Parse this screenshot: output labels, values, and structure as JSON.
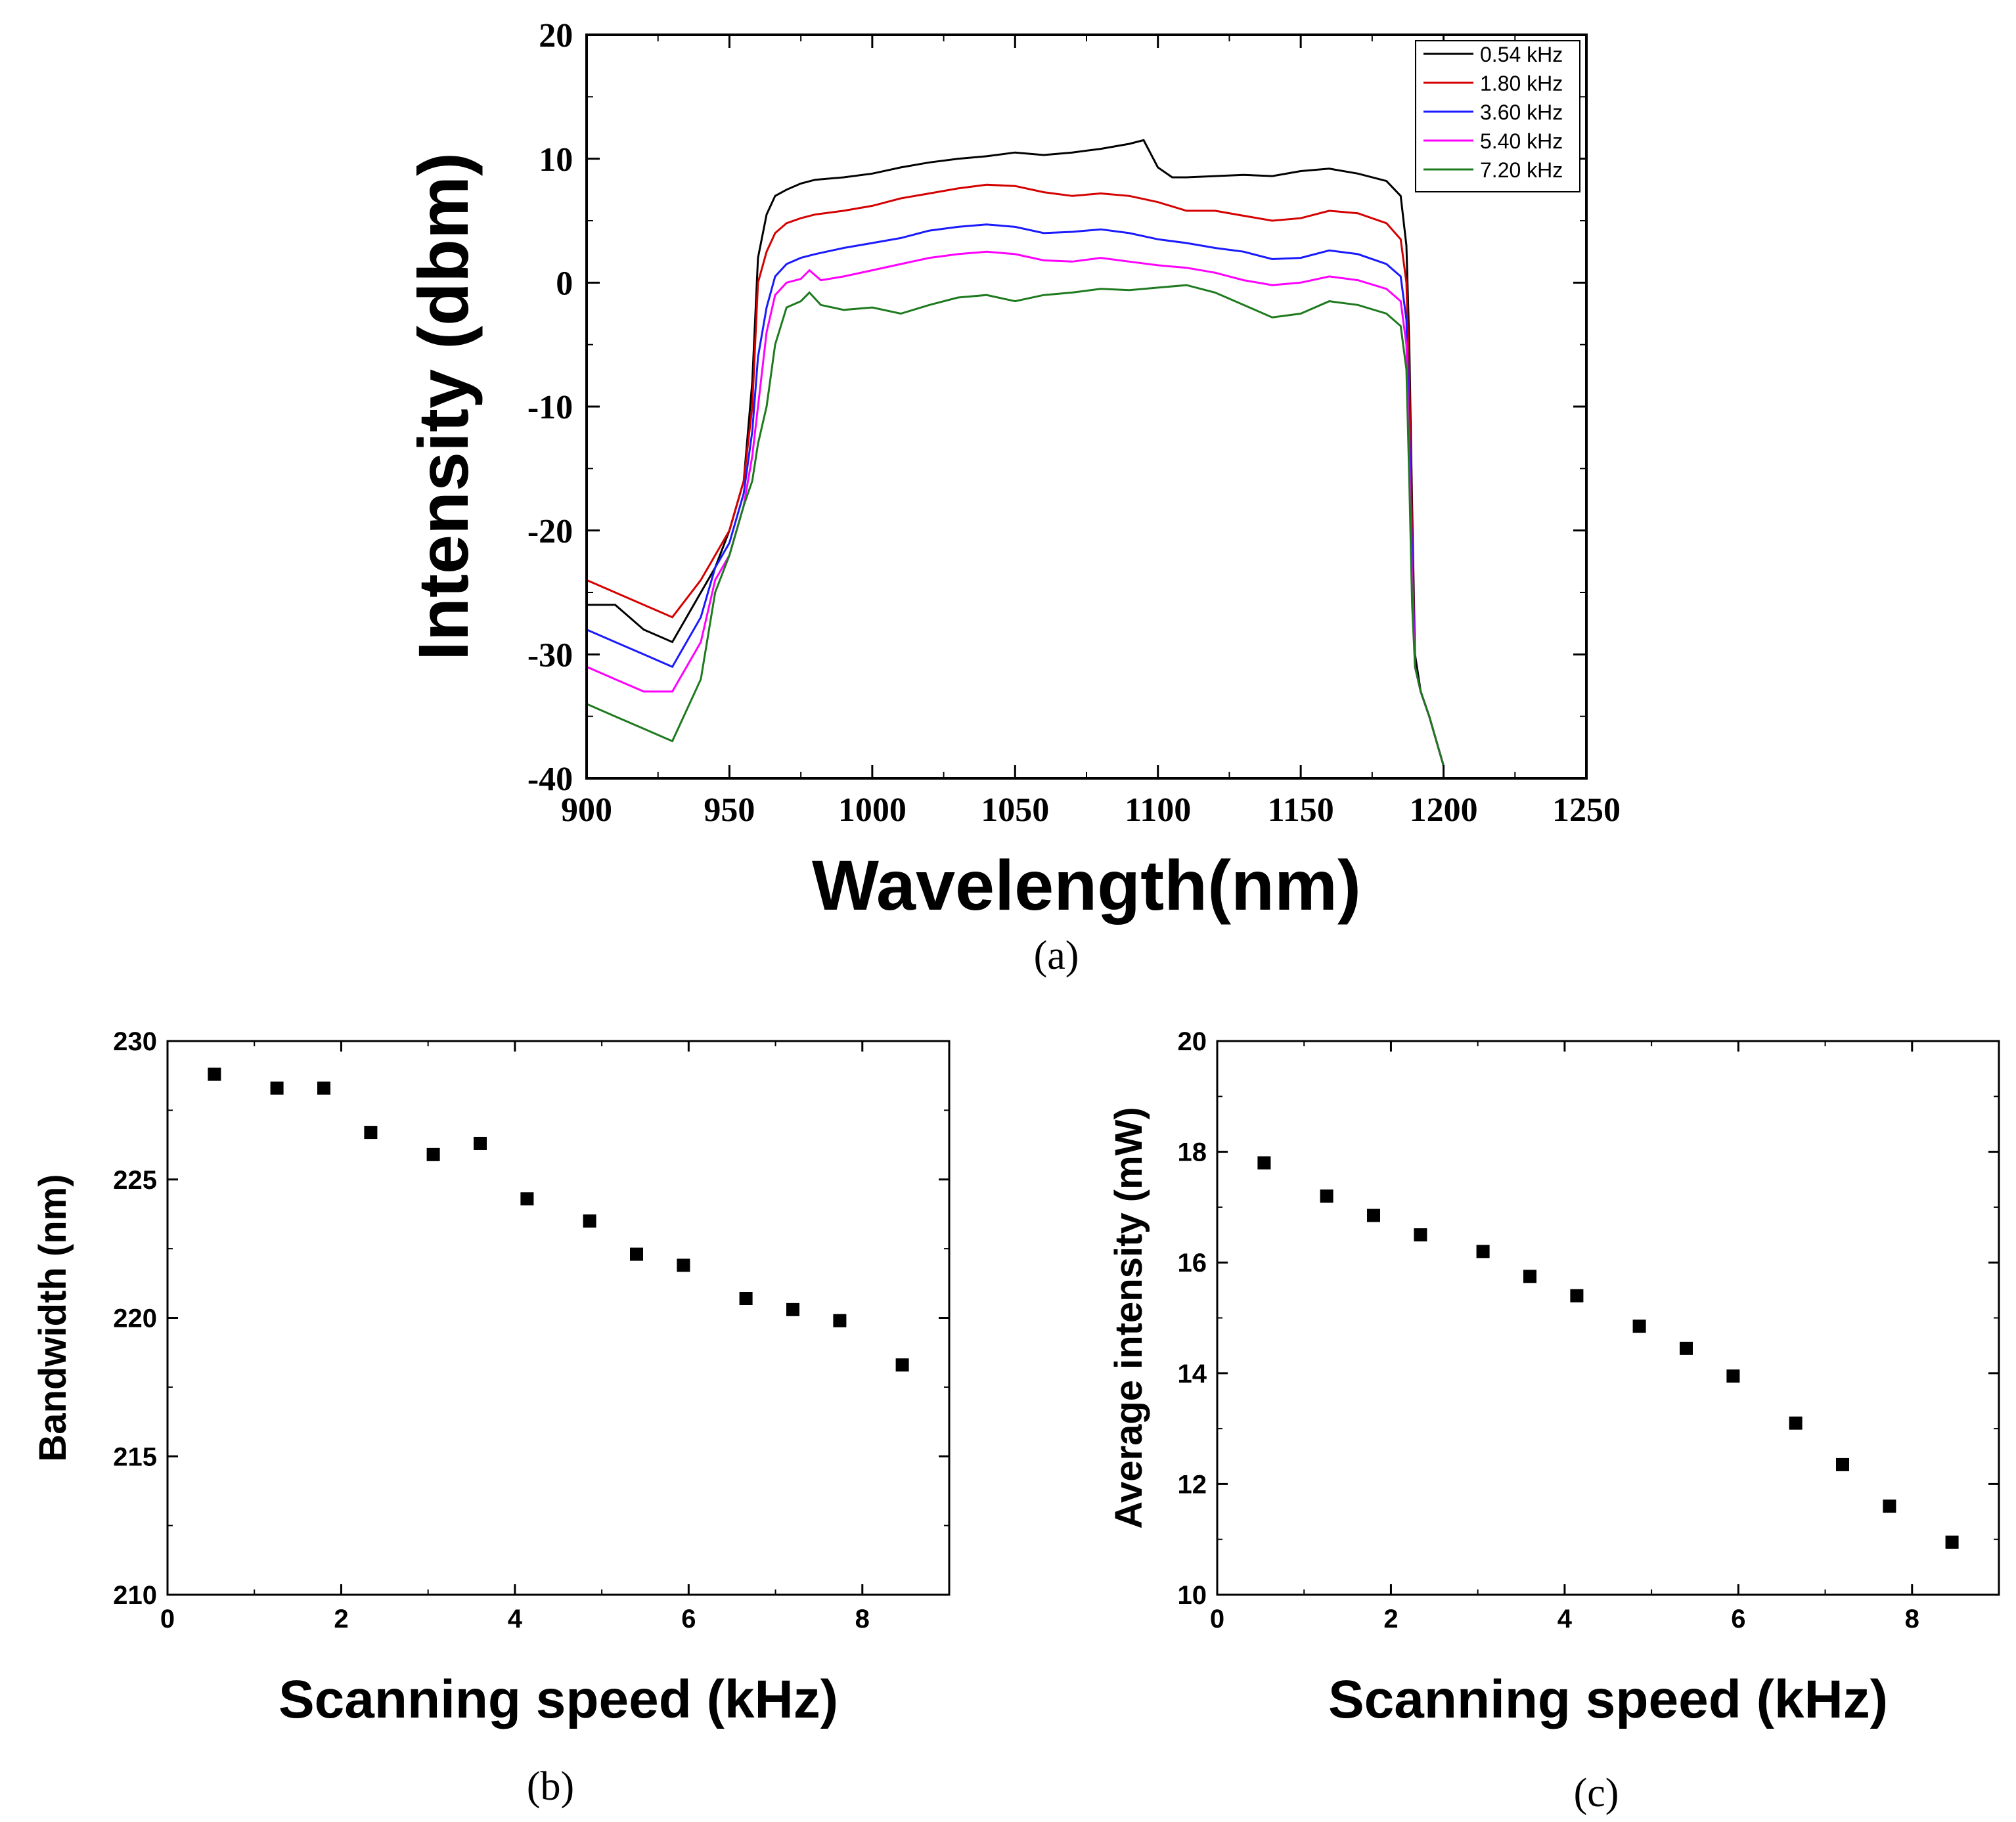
{
  "chart_data": [
    {
      "type": "line",
      "panel": "(a)",
      "xlabel": "Wavelength(nm)",
      "ylabel": "Intensity (dbm)",
      "xlim": [
        900,
        1250
      ],
      "ylim": [
        -40,
        20
      ],
      "xticks": [
        900,
        950,
        1000,
        1050,
        1100,
        1150,
        1200,
        1250
      ],
      "yticks": [
        -40,
        -30,
        -20,
        -10,
        0,
        10,
        20
      ],
      "grid": false,
      "legend_position": "top-right",
      "series": [
        {
          "name": "0.54 kHz",
          "color": "#000000",
          "x": [
            900,
            910,
            920,
            930,
            940,
            945,
            950,
            955,
            958,
            960,
            963,
            966,
            970,
            975,
            980,
            990,
            1000,
            1010,
            1020,
            1030,
            1040,
            1050,
            1060,
            1070,
            1080,
            1090,
            1095,
            1100,
            1105,
            1110,
            1120,
            1130,
            1140,
            1150,
            1160,
            1170,
            1180,
            1185,
            1187,
            1188,
            1189,
            1190,
            1192,
            1195,
            1200
          ],
          "y": [
            -26,
            -26,
            -28,
            -29,
            -25,
            -23,
            -20,
            -16,
            -8,
            2,
            5.5,
            7,
            7.5,
            8,
            8.3,
            8.5,
            8.8,
            9.3,
            9.7,
            10,
            10.2,
            10.5,
            10.3,
            10.5,
            10.8,
            11.2,
            11.5,
            9.3,
            8.5,
            8.5,
            8.6,
            8.7,
            8.6,
            9.0,
            9.2,
            8.8,
            8.2,
            7.0,
            3.0,
            -5,
            -18,
            -30,
            -33,
            -35,
            -39
          ]
        },
        {
          "name": "1.80 kHz",
          "color": "#d40000",
          "x": [
            900,
            910,
            920,
            930,
            940,
            945,
            950,
            955,
            958,
            960,
            963,
            966,
            970,
            975,
            980,
            990,
            1000,
            1010,
            1020,
            1030,
            1040,
            1050,
            1060,
            1070,
            1080,
            1090,
            1100,
            1110,
            1120,
            1130,
            1140,
            1150,
            1160,
            1170,
            1180,
            1185,
            1187,
            1188,
            1189,
            1190,
            1192,
            1195,
            1200
          ],
          "y": [
            -24,
            -25,
            -26,
            -27,
            -24,
            -22,
            -20,
            -16,
            -10,
            0,
            2.5,
            4,
            4.8,
            5.2,
            5.5,
            5.8,
            6.2,
            6.8,
            7.2,
            7.6,
            7.9,
            7.8,
            7.3,
            7.0,
            7.2,
            7.0,
            6.5,
            5.8,
            5.8,
            5.4,
            5.0,
            5.2,
            5.8,
            5.6,
            4.8,
            3.5,
            0,
            -8,
            -20,
            -31,
            -33,
            -35,
            -39
          ]
        },
        {
          "name": "3.60 kHz",
          "color": "#1a1aff",
          "x": [
            900,
            910,
            920,
            930,
            940,
            945,
            950,
            955,
            958,
            960,
            963,
            966,
            970,
            975,
            980,
            990,
            1000,
            1010,
            1020,
            1030,
            1040,
            1050,
            1060,
            1070,
            1080,
            1090,
            1100,
            1110,
            1120,
            1130,
            1140,
            1150,
            1160,
            1170,
            1180,
            1185,
            1187,
            1188,
            1189,
            1190,
            1192,
            1195,
            1200
          ],
          "y": [
            -28,
            -29,
            -30,
            -31,
            -27,
            -23,
            -21,
            -17,
            -12,
            -6,
            -2,
            0.5,
            1.5,
            2.0,
            2.3,
            2.8,
            3.2,
            3.6,
            4.2,
            4.5,
            4.7,
            4.5,
            4.0,
            4.1,
            4.3,
            4.0,
            3.5,
            3.2,
            2.8,
            2.5,
            1.9,
            2.0,
            2.6,
            2.3,
            1.5,
            0.5,
            -3,
            -12,
            -22,
            -31,
            -33,
            -35,
            -39
          ]
        },
        {
          "name": "5.40 kHz",
          "color": "#ff00ff",
          "x": [
            900,
            910,
            920,
            930,
            940,
            945,
            950,
            955,
            958,
            960,
            963,
            966,
            970,
            975,
            978,
            982,
            990,
            1000,
            1010,
            1020,
            1030,
            1040,
            1050,
            1060,
            1070,
            1080,
            1090,
            1100,
            1110,
            1120,
            1130,
            1140,
            1150,
            1160,
            1170,
            1180,
            1185,
            1187,
            1188,
            1189,
            1190,
            1192,
            1195,
            1200
          ],
          "y": [
            -31,
            -32,
            -33,
            -33,
            -29,
            -24,
            -22,
            -18,
            -14,
            -10,
            -4,
            -1,
            0,
            0.3,
            1.0,
            0.2,
            0.5,
            1.0,
            1.5,
            2.0,
            2.3,
            2.5,
            2.3,
            1.8,
            1.7,
            2.0,
            1.7,
            1.4,
            1.2,
            0.8,
            0.2,
            -0.2,
            0,
            0.5,
            0.2,
            -0.5,
            -1.5,
            -5,
            -14,
            -24,
            -31,
            -33,
            -35,
            -39
          ]
        },
        {
          "name": "7.20 kHz",
          "color": "#1e7a1e",
          "x": [
            900,
            910,
            920,
            930,
            940,
            945,
            950,
            955,
            958,
            960,
            963,
            966,
            970,
            975,
            978,
            982,
            990,
            1000,
            1010,
            1020,
            1030,
            1040,
            1050,
            1060,
            1070,
            1080,
            1090,
            1100,
            1110,
            1120,
            1130,
            1140,
            1150,
            1160,
            1170,
            1180,
            1185,
            1187,
            1188,
            1189,
            1190,
            1192,
            1195,
            1200
          ],
          "y": [
            -34,
            -35,
            -36,
            -37,
            -32,
            -25,
            -22,
            -18,
            -16,
            -13,
            -10,
            -5,
            -2,
            -1.5,
            -0.8,
            -1.8,
            -2.2,
            -2.0,
            -2.5,
            -1.8,
            -1.2,
            -1.0,
            -1.5,
            -1.0,
            -0.8,
            -0.5,
            -0.6,
            -0.4,
            -0.2,
            -0.8,
            -1.8,
            -2.8,
            -2.5,
            -1.5,
            -1.8,
            -2.5,
            -3.5,
            -7,
            -16,
            -26,
            -31,
            -33,
            -35,
            -39
          ]
        }
      ]
    },
    {
      "type": "scatter",
      "panel": "(b)",
      "xlabel": "Scanning speed (kHz)",
      "ylabel": "Bandwidth (nm)",
      "xlim": [
        0,
        9
      ],
      "ylim": [
        210,
        230
      ],
      "xticks": [
        0,
        2,
        4,
        6,
        8
      ],
      "yticks": [
        210,
        215,
        220,
        225,
        230
      ],
      "grid": false,
      "x": [
        0.54,
        1.26,
        1.8,
        2.34,
        3.06,
        3.6,
        4.14,
        4.86,
        5.4,
        5.94,
        6.66,
        7.2,
        7.74,
        8.46
      ],
      "y": [
        228.8,
        228.3,
        228.3,
        226.7,
        225.9,
        226.3,
        224.3,
        223.5,
        222.3,
        221.9,
        220.7,
        220.3,
        219.9,
        218.3
      ]
    },
    {
      "type": "scatter",
      "panel": "(c)",
      "xlabel": "Scanning speed (kHz)",
      "ylabel": "Average intensity (mW)",
      "xlim": [
        0,
        9
      ],
      "ylim": [
        10,
        20
      ],
      "xticks": [
        0,
        2,
        4,
        6,
        8
      ],
      "yticks": [
        10,
        12,
        14,
        16,
        18,
        20
      ],
      "grid": false,
      "x": [
        0.54,
        1.26,
        1.8,
        2.34,
        3.06,
        3.6,
        4.14,
        4.86,
        5.4,
        5.94,
        6.66,
        7.2,
        7.74,
        8.46
      ],
      "y": [
        17.8,
        17.2,
        16.85,
        16.5,
        16.2,
        15.75,
        15.4,
        14.85,
        14.45,
        13.95,
        13.1,
        12.35,
        11.6,
        10.95
      ]
    }
  ]
}
